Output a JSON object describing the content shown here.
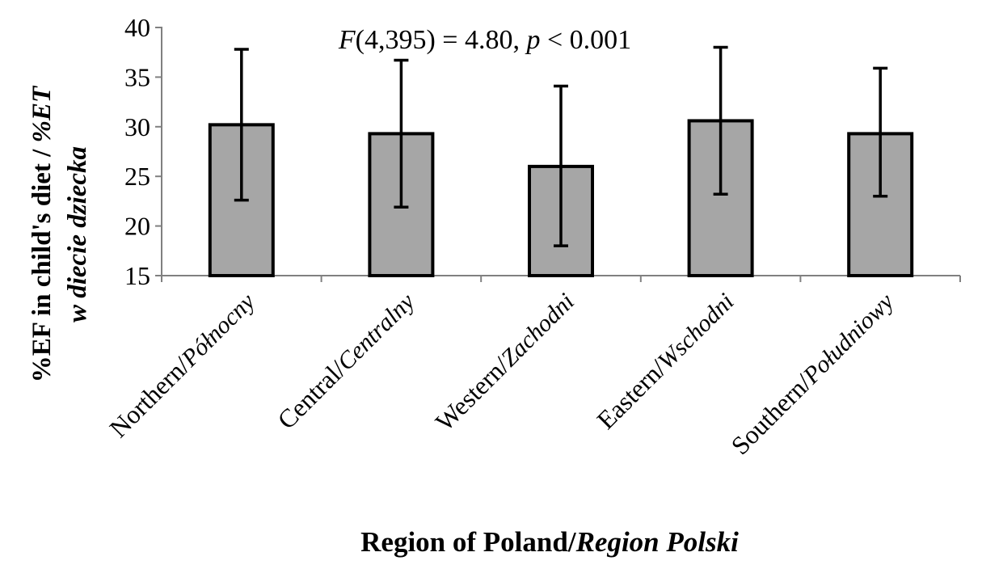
{
  "chart_data": {
    "type": "bar",
    "annotation": {
      "prefix_italic": "F",
      "middle": "(4,395) = 4.80, ",
      "p_italic": "p",
      "suffix": " < 0.001"
    },
    "ylabel": {
      "line1": "%EF in child's diet /",
      "line1_italic": "%ET",
      "line2_italic": "w diecie dziecka"
    },
    "xlabel": {
      "main": "Region of Poland/",
      "italic": "Region Polski"
    },
    "categories": [
      {
        "main": "Northern/",
        "italic": "Północny"
      },
      {
        "main": "Central/",
        "italic": "Centralny"
      },
      {
        "main": "Western/",
        "italic": "Zachodni"
      },
      {
        "main": "Eastern/",
        "italic": "Wschodni"
      },
      {
        "main": "Southern/",
        "italic": "Południowy"
      }
    ],
    "values": [
      30.2,
      29.3,
      26.0,
      30.6,
      29.3
    ],
    "error_upper": [
      37.8,
      36.7,
      34.1,
      38.0,
      35.9
    ],
    "error_lower": [
      22.6,
      21.9,
      18.0,
      23.2,
      23.0
    ],
    "ylim": [
      15,
      40
    ],
    "yticks": [
      "15",
      "20",
      "25",
      "30",
      "35",
      "40"
    ],
    "grid": false,
    "bar_color": "#a6a6a6",
    "stroke_color": "#000000"
  }
}
